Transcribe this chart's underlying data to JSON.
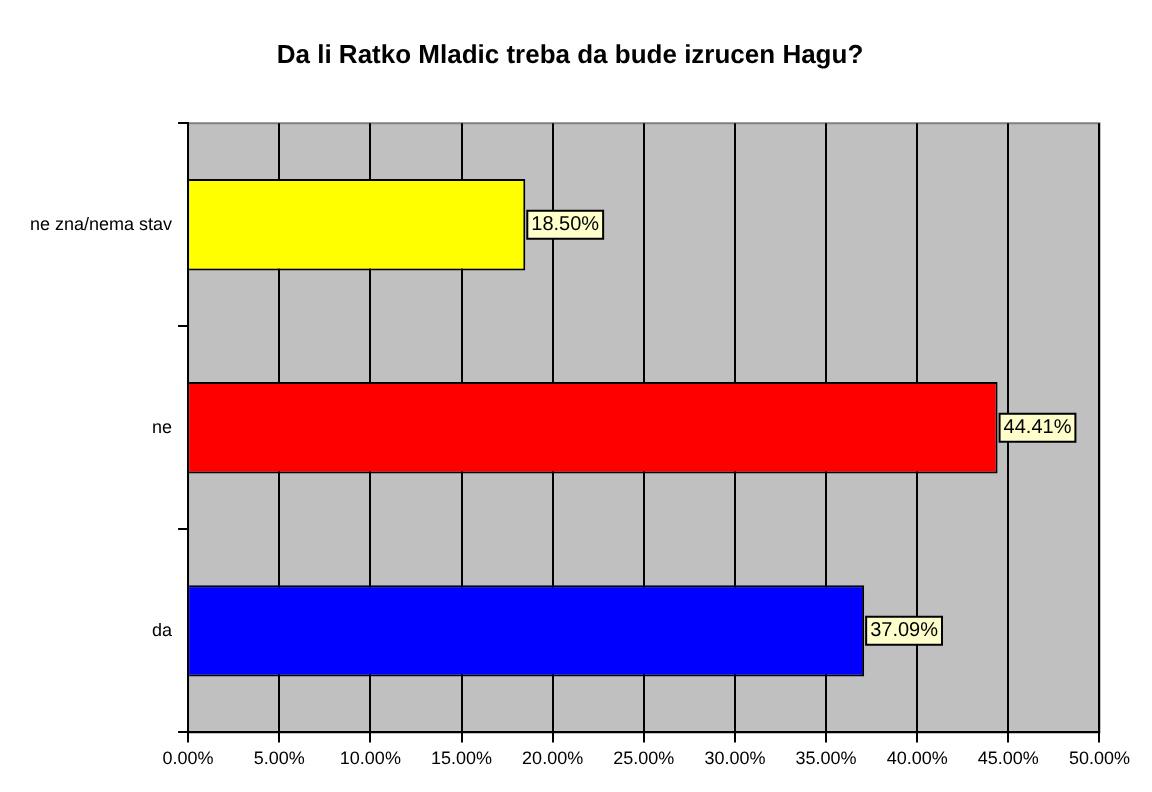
{
  "chart_data": {
    "type": "bar",
    "orientation": "horizontal",
    "title": "Da li Ratko Mladic treba da bude izrucen Hagu?",
    "categories": [
      "ne zna/nema stav",
      "ne",
      "da"
    ],
    "values": [
      18.5,
      44.41,
      37.09
    ],
    "colors": [
      "#ffff00",
      "#ff0000",
      "#0000ff"
    ],
    "value_labels": [
      "18.50%",
      "44.41%",
      "37.09%"
    ],
    "xlim": [
      0,
      50
    ],
    "xticks": [
      {
        "value": 0,
        "label": "0.00%"
      },
      {
        "value": 5,
        "label": "5.00%"
      },
      {
        "value": 10,
        "label": "10.00%"
      },
      {
        "value": 15,
        "label": "15.00%"
      },
      {
        "value": 20,
        "label": "20.00%"
      },
      {
        "value": 25,
        "label": "25.00%"
      },
      {
        "value": 30,
        "label": "30.00%"
      },
      {
        "value": 35,
        "label": "35.00%"
      },
      {
        "value": 40,
        "label": "40.00%"
      },
      {
        "value": 45,
        "label": "45.00%"
      },
      {
        "value": 50,
        "label": "50.00%"
      }
    ],
    "grid": "x",
    "legend": false
  }
}
